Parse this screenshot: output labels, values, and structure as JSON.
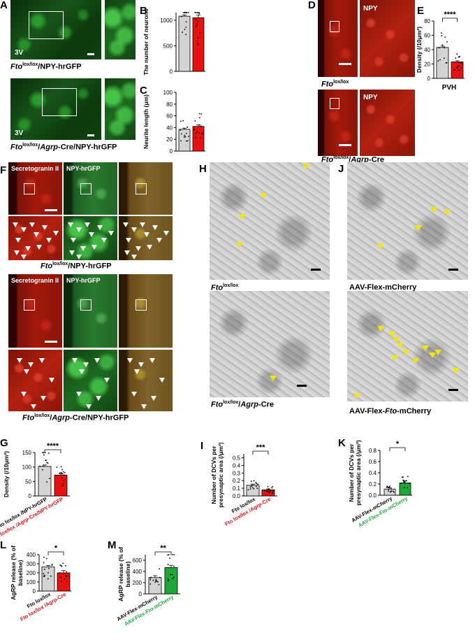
{
  "panel_labels": [
    "A",
    "B",
    "C",
    "D",
    "E",
    "F",
    "G",
    "H",
    "I",
    "J",
    "K",
    "L",
    "M"
  ],
  "image_text": {
    "A_3v": "3V",
    "D_npy": "NPY",
    "F_sg": "Secretogranin II",
    "F_npy": "NPY-hrGFP"
  },
  "captions": {
    "A_top_sup": "lox/lox",
    "A_top_rest": "/NPY-hrGFP",
    "A_bot_sup": "lox/lox",
    "A_bot_mid": "/",
    "A_bot_agrp": "Agrp",
    "A_bot_rest": "-Cre/NPY-hrGFP",
    "gene": "Fto",
    "D_top_sup": "lox/lox",
    "D_bot_sup": "lox/lox",
    "D_bot_mid": "/",
    "D_bot_agrp": "Agrp",
    "D_bot_rest": "-Cre",
    "H_top_sup": "lox/lox",
    "H_bot_sup": "lox/lox",
    "H_bot_mid": "/",
    "H_bot_agrp": "Agrp",
    "H_bot_rest": "-Cre",
    "J_top": "AAV-Flex-mCherry",
    "J_bot_pre": "AAV-Flex-",
    "J_bot_post": "-mCherry",
    "F_top_sup": "lox/lox",
    "F_top_rest": "/NPY-hrGFP",
    "F_bot_sup": "lox/lox",
    "F_bot_mid": "/",
    "F_bot_agrp": "Agrp",
    "F_bot_rest": "-Cre/NPY-hrGFP"
  },
  "colors": {
    "control": "#d3d3d3",
    "fto_ko": "#e8110f",
    "fto_rescue": "#1fa83a",
    "control_label_ko": "#e8110f",
    "rescue_label": "#1fa83a"
  },
  "chart_data": [
    {
      "id": "B",
      "type": "bar",
      "ylabel": "The number of neurons",
      "yticks": [
        0,
        500,
        1000
      ],
      "ylim": [
        0,
        1150
      ],
      "categories": [
        "",
        ""
      ],
      "values": [
        1080,
        1050
      ],
      "errors": [
        25,
        55
      ],
      "significance": ""
    },
    {
      "id": "C",
      "type": "bar",
      "ylabel": "Neurite length (μm)",
      "yticks": [
        0,
        20,
        40,
        60,
        80,
        100
      ],
      "ylim": [
        0,
        100
      ],
      "categories": [
        "",
        ""
      ],
      "values": [
        37,
        42
      ],
      "errors": [
        2,
        2.5
      ],
      "significance": ""
    },
    {
      "id": "E",
      "type": "bar",
      "ylabel": "Density (/10μm²)",
      "yticks": [
        0,
        20,
        40,
        60,
        80
      ],
      "ylim": [
        0,
        80
      ],
      "categories": [
        "",
        ""
      ],
      "values": [
        43,
        23
      ],
      "errors": [
        2,
        1.5
      ],
      "significance": "****",
      "xlabel": "PVH"
    },
    {
      "id": "G",
      "type": "bar",
      "ylabel": "Density (/10μm²)",
      "yticks": [
        0,
        50,
        100,
        150
      ],
      "ylim": [
        0,
        150
      ],
      "categories": [
        "Fto lox/lox /NPY-hrGFP",
        "Fto lox/lox /Agrp-Cre/NPY-hrGFP"
      ],
      "values": [
        102,
        72
      ],
      "errors": [
        5,
        5
      ],
      "significance": "****"
    },
    {
      "id": "I",
      "type": "bar",
      "ylabel": "Number of DCVs per presynaptic area (/μm²)",
      "yticks": [
        0.0,
        0.1,
        0.2,
        0.3,
        0.4,
        0.5
      ],
      "ylim": [
        0,
        0.55
      ],
      "categories": [
        "Fto lox/lox",
        "Fto lox/lox /Agrp-Cre"
      ],
      "values": [
        0.14,
        0.08
      ],
      "errors": [
        0.015,
        0.01
      ],
      "significance": "***"
    },
    {
      "id": "K",
      "type": "bar",
      "ylabel": "Number of DCVs per presynaptic area (/μm²)",
      "yticks": [
        0.0,
        0.2,
        0.4,
        0.6,
        0.8
      ],
      "ylim": [
        0,
        0.8
      ],
      "categories": [
        "AAV-Flex-mCherry",
        "AAV-Flex-Fto-mCherry"
      ],
      "values": [
        0.11,
        0.22
      ],
      "errors": [
        0.02,
        0.04
      ],
      "significance": "*"
    },
    {
      "id": "L",
      "type": "bar",
      "ylabel": "AgRP release (% of baseline)",
      "yticks": [
        0,
        100,
        200,
        300,
        400
      ],
      "ylim": [
        0,
        400
      ],
      "categories": [
        "Fto lox/lox",
        "Fto lox/lox /Agrp-Cre"
      ],
      "values": [
        265,
        200
      ],
      "errors": [
        15,
        25
      ],
      "significance": "*"
    },
    {
      "id": "M",
      "type": "bar",
      "ylabel": "AgRP release (% of baseline)",
      "yticks": [
        0,
        200,
        400,
        600
      ],
      "ylim": [
        0,
        700
      ],
      "categories": [
        "AAV-Flex-mCherry",
        "AAV-Flex-Fto-mCherry"
      ],
      "values": [
        290,
        470
      ],
      "errors": [
        35,
        40
      ],
      "significance": "**"
    }
  ]
}
